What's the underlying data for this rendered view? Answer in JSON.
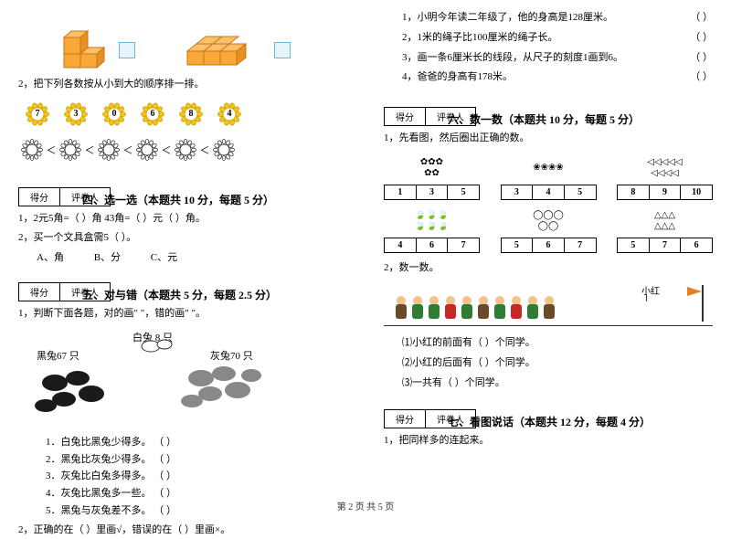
{
  "left": {
    "q2_order": "2，把下列各数按从小到大的顺序排一排。",
    "flower_nums": [
      "7",
      "3",
      "0",
      "6",
      "8",
      "4"
    ],
    "flower_color": "#f5c517",
    "flower_stroke": "#d4a80f",
    "lt_symbol": "＜",
    "score_label_1": "得分",
    "score_label_2": "评卷人",
    "section4": "四、选一选（本题共 10 分，每题 5 分）",
    "s4_q1": "1，2元5角=（    ）角    43角=（    ）元（    ）角。",
    "s4_q2": "2，买一个文具盒需5（  ）。",
    "s4_optA": "A、角",
    "s4_optB": "B、分",
    "s4_optC": "C、元",
    "section5": "五、对与错（本题共 5 分，每题 2.5 分）",
    "s5_q1": "1，判断下面各题，对的画\" \"，错的画\" \"。",
    "rabbit_white": "白兔 8 只",
    "rabbit_black": "黑兔67 只",
    "rabbit_gray": "灰兔70 只",
    "s5_sub1": "1．白兔比黑兔少得多。  （    ）",
    "s5_sub2": "2．黑兔比灰兔少得多。  （    ）",
    "s5_sub3": "3．灰兔比白兔多得多。  （    ）",
    "s5_sub4": "4．灰兔比黑兔多一些。  （    ）",
    "s5_sub5": "5．黑兔与灰兔差不多。  （    ）",
    "s5_q2": "2，正确的在（    ）里画√，错误的在（    ）里画×。"
  },
  "right": {
    "tf1": "1，小明今年读二年级了，他的身高是128厘米。",
    "tf2": "2，1米的绳子比100厘米的绳子长。",
    "tf3": "3，画一条6厘米长的线段，从尺子的刻度1画到6。",
    "tf4": "4，爸爸的身高有178米。",
    "paren": "（    ）",
    "score_label_1": "得分",
    "score_label_2": "评卷人",
    "section6": "六、数一数（本题共 10 分，每题 5 分）",
    "s6_q1": "1，先看图，然后圈出正确的数。",
    "s6_q2": "2，数一数。",
    "count_row1": [
      {
        "nums": [
          "1",
          "3",
          "5"
        ],
        "glyph": "flowers"
      },
      {
        "nums": [
          "3",
          "4",
          "5"
        ],
        "glyph": "flowers2"
      },
      {
        "nums": [
          "8",
          "9",
          "10"
        ],
        "glyph": "fish"
      }
    ],
    "count_row2": [
      {
        "nums": [
          "4",
          "6",
          "7"
        ],
        "glyph": "leaves"
      },
      {
        "nums": [
          "5",
          "6",
          "7"
        ],
        "glyph": "garlic"
      },
      {
        "nums": [
          "5",
          "7",
          "6"
        ],
        "glyph": "tri"
      }
    ],
    "xh_label": "小红",
    "kid_colors": [
      "#6b4a2b",
      "#2e7d32",
      "#2e7d32",
      "#c62828",
      "#2e7d32",
      "#6b4a2b",
      "#2e7d32",
      "#c62828",
      "#2e7d32",
      "#6b4a2b"
    ],
    "s6_sub1": "⑴小红的前面有（    ）个同学。",
    "s6_sub2": "⑵小红的后面有（    ）个同学。",
    "s6_sub3": "⑶一共有（        ）个同学。",
    "section7": "七、看图说话（本题共 12 分，每题 4 分）",
    "s7_q1": "1，把同样多的连起来。"
  },
  "footer": "第 2 页 共 5 页"
}
